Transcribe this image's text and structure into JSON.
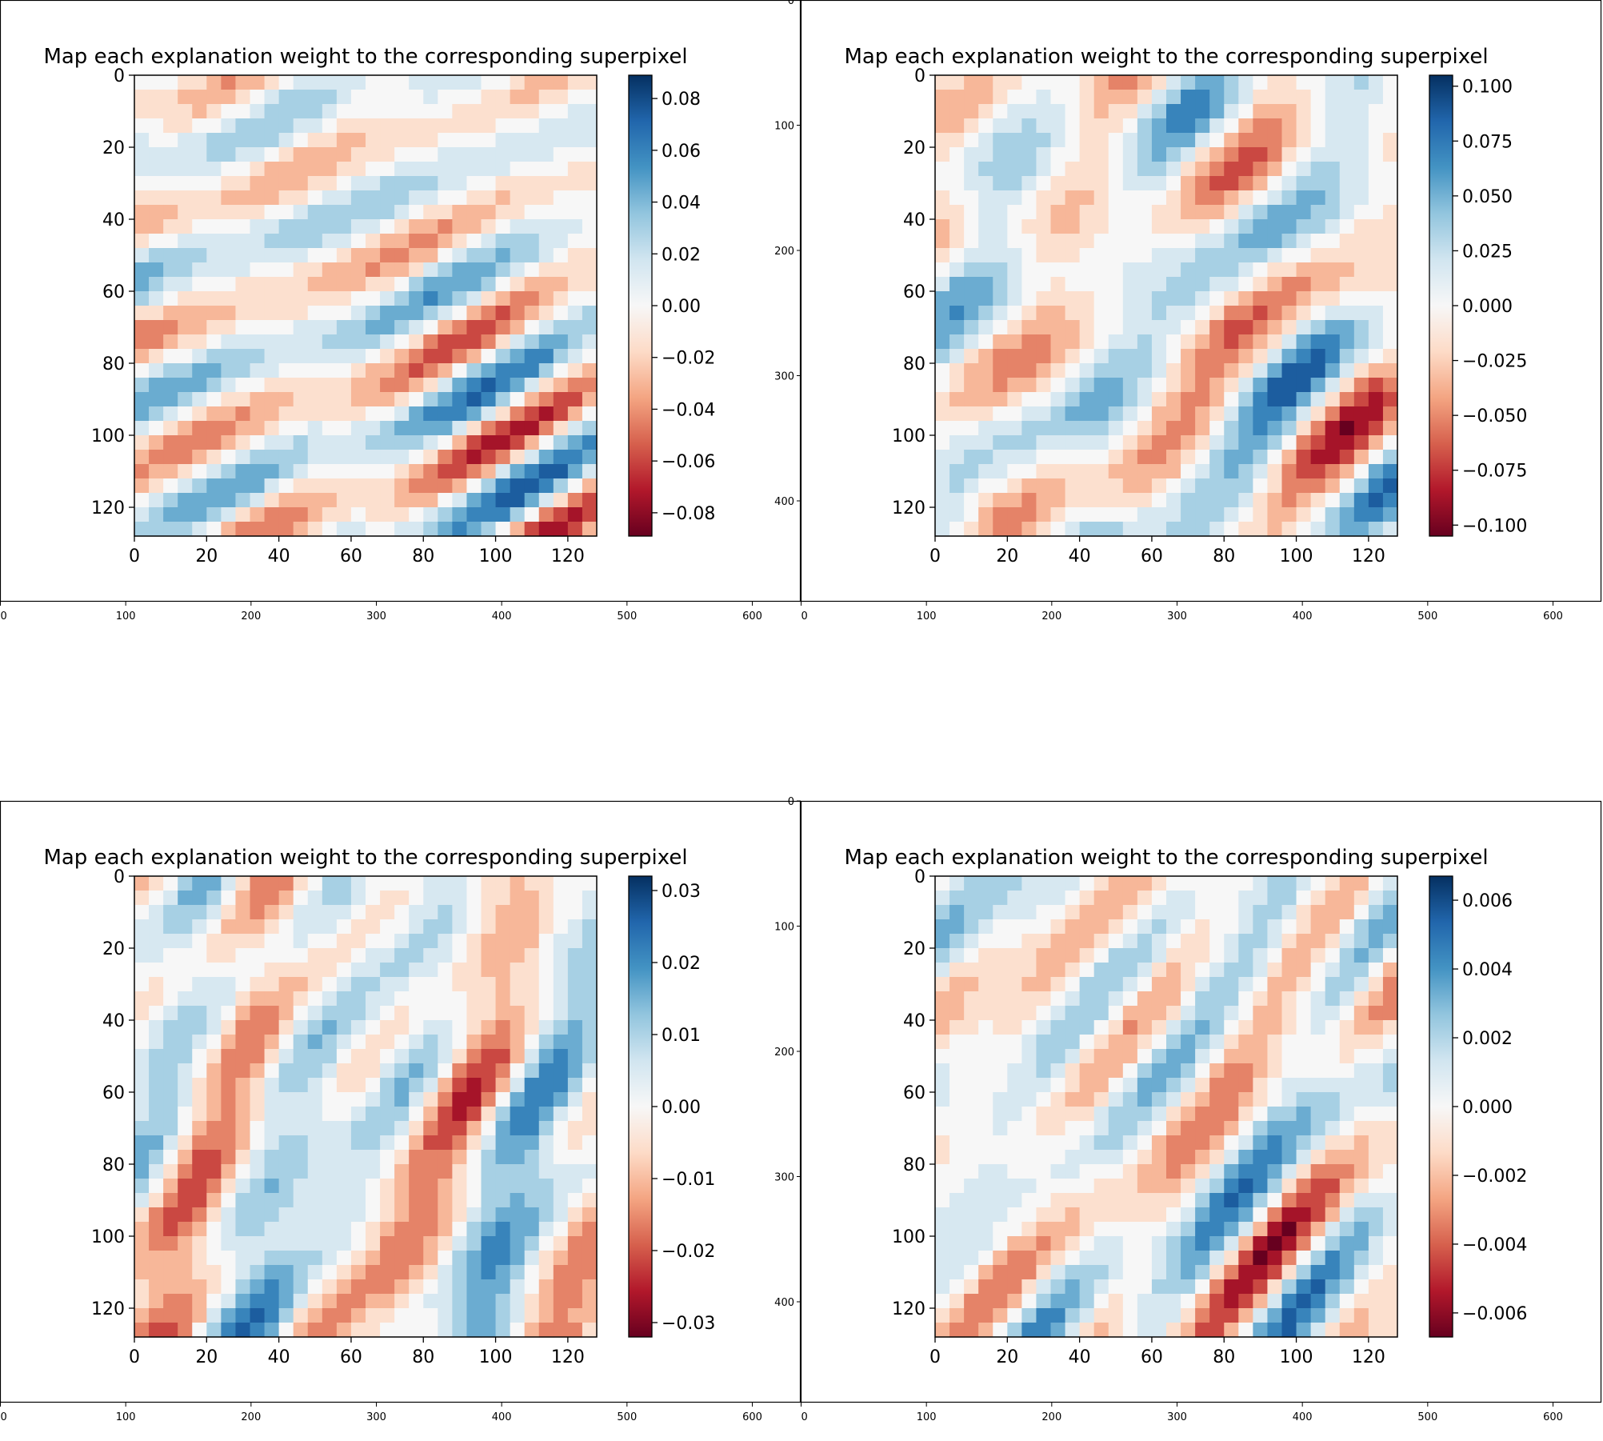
{
  "chart_data": [
    {
      "type": "heatmap",
      "title": "Map each explanation weight to the corresponding superpixel",
      "colormap": "RdBu",
      "x_ticks": [
        "0",
        "20",
        "40",
        "60",
        "80",
        "100",
        "120"
      ],
      "y_ticks": [
        "0",
        "20",
        "40",
        "60",
        "80",
        "100",
        "120"
      ],
      "xlim": [
        0,
        128
      ],
      "ylim": [
        128,
        0
      ],
      "colorbar": {
        "range": [
          -0.089,
          0.089
        ],
        "ticks": [
          0.08,
          0.06,
          0.04,
          0.02,
          0.0,
          -0.02,
          -0.04,
          -0.06,
          -0.08
        ],
        "tick_labels": [
          "0.08",
          "0.06",
          "0.04",
          "0.02",
          "0.00",
          "−0.02",
          "−0.04",
          "−0.06",
          "−0.08"
        ]
      },
      "outer_x_ticks": [
        "0",
        "100",
        "200",
        "300",
        "400",
        "500",
        "600"
      ],
      "outer_y_ticks": []
    },
    {
      "type": "heatmap",
      "title": "Map each explanation weight to the corresponding superpixel",
      "colormap": "RdBu",
      "x_ticks": [
        "0",
        "20",
        "40",
        "60",
        "80",
        "100",
        "120"
      ],
      "y_ticks": [
        "0",
        "20",
        "40",
        "60",
        "80",
        "100",
        "120"
      ],
      "xlim": [
        0,
        128
      ],
      "ylim": [
        128,
        0
      ],
      "colorbar": {
        "range": [
          -0.105,
          0.105
        ],
        "ticks": [
          0.1,
          0.075,
          0.05,
          0.025,
          0.0,
          -0.025,
          -0.05,
          -0.075,
          -0.1
        ],
        "tick_labels": [
          "0.100",
          "0.075",
          "0.050",
          "0.025",
          "0.000",
          "−0.025",
          "−0.050",
          "−0.075",
          "−0.100"
        ]
      },
      "outer_x_ticks": [
        "0",
        "100",
        "200",
        "300",
        "400",
        "500",
        "600"
      ],
      "outer_y_ticks": [
        "0",
        "100",
        "200",
        "300",
        "400"
      ]
    },
    {
      "type": "heatmap",
      "title": "Map each explanation weight to the corresponding superpixel",
      "colormap": "RdBu",
      "x_ticks": [
        "0",
        "20",
        "40",
        "60",
        "80",
        "100",
        "120"
      ],
      "y_ticks": [
        "0",
        "20",
        "40",
        "60",
        "80",
        "100",
        "120"
      ],
      "xlim": [
        0,
        128
      ],
      "ylim": [
        128,
        0
      ],
      "colorbar": {
        "range": [
          -0.032,
          0.032
        ],
        "ticks": [
          0.03,
          0.02,
          0.01,
          0.0,
          -0.01,
          -0.02,
          -0.03
        ],
        "tick_labels": [
          "0.03",
          "0.02",
          "0.01",
          "0.00",
          "−0.01",
          "−0.02",
          "−0.03"
        ]
      },
      "outer_x_ticks": [
        "0",
        "100",
        "200",
        "300",
        "400",
        "500",
        "600"
      ],
      "outer_y_ticks": []
    },
    {
      "type": "heatmap",
      "title": "Map each explanation weight to the corresponding superpixel",
      "colormap": "RdBu",
      "x_ticks": [
        "0",
        "20",
        "40",
        "60",
        "80",
        "100",
        "120"
      ],
      "y_ticks": [
        "0",
        "20",
        "40",
        "60",
        "80",
        "100",
        "120"
      ],
      "xlim": [
        0,
        128
      ],
      "ylim": [
        128,
        0
      ],
      "colorbar": {
        "range": [
          -0.0067,
          0.0067
        ],
        "ticks": [
          0.006,
          0.004,
          0.002,
          0.0,
          -0.002,
          -0.004,
          -0.006
        ],
        "tick_labels": [
          "0.006",
          "0.004",
          "0.002",
          "0.000",
          "−0.002",
          "−0.004",
          "−0.006"
        ]
      },
      "outer_x_ticks": [
        "0",
        "100",
        "200",
        "300",
        "400",
        "500",
        "600"
      ],
      "outer_y_ticks": [
        "0",
        "100",
        "200",
        "300",
        "400"
      ]
    }
  ]
}
